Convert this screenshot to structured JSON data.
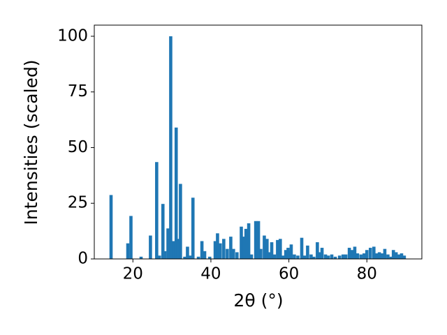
{
  "chart_data": {
    "type": "bar",
    "x_label": "2θ (°)",
    "y_label": "Intensities (scaled)",
    "x": [
      14.4,
      18.7,
      19.5,
      22.1,
      24.5,
      26.1,
      26.8,
      27.7,
      28.2,
      29.0,
      29.7,
      30.4,
      31.1,
      31.5,
      32.2,
      33.3,
      34.0,
      34.7,
      35.4,
      36.8,
      37.7,
      38.4,
      39.7,
      41.1,
      41.7,
      42.4,
      43.3,
      44.2,
      45.1,
      45.8,
      46.7,
      47.8,
      48.5,
      49.0,
      49.7,
      50.4,
      51.5,
      52.2,
      52.8,
      53.7,
      54.4,
      55.1,
      55.6,
      56.3,
      57.1,
      57.8,
      58.5,
      59.2,
      59.8,
      60.1,
      60.6,
      61.4,
      62.3,
      63.3,
      64.0,
      64.8,
      65.7,
      66.4,
      67.3,
      68.0,
      68.5,
      69.4,
      70.1,
      71.0,
      71.9,
      73.0,
      73.9,
      74.6,
      75.5,
      76.2,
      76.9,
      77.6,
      78.5,
      79.3,
      80.0,
      80.9,
      81.8,
      82.5,
      83.2,
      83.9,
      84.6,
      85.4,
      86.2,
      86.8,
      87.5,
      88.2,
      88.9,
      89.6
    ],
    "values": [
      28.7,
      7,
      19.3,
      1,
      10.5,
      43.5,
      1.5,
      24.7,
      3.5,
      13.7,
      100,
      8,
      59,
      9,
      33.7,
      1,
      5.5,
      1.5,
      27.5,
      1,
      8,
      3.5,
      1,
      8,
      11.5,
      7,
      9,
      4.5,
      10,
      4.5,
      3,
      14.5,
      10,
      13.5,
      16,
      2,
      17,
      17,
      4.5,
      10.5,
      9,
      3,
      7.5,
      2,
      8.5,
      9,
      1.5,
      4,
      5,
      3.5,
      6.5,
      2,
      1.5,
      9.5,
      1.5,
      6,
      2,
      1,
      7.5,
      3,
      5,
      2,
      1.5,
      2,
      1,
      1.5,
      2,
      2,
      5,
      4,
      5.5,
      2.5,
      2,
      2.5,
      4,
      5,
      5.5,
      2.5,
      3,
      2.5,
      4.5,
      2,
      1,
      4,
      3,
      2,
      2.5,
      1.5
    ],
    "color": "#1f77b4",
    "xlim": [
      10.1,
      94.1
    ],
    "xticks": [
      20,
      40,
      60,
      80
    ],
    "ylim": [
      0,
      105
    ],
    "yticks": [
      0,
      25,
      50,
      75,
      100
    ],
    "grid": false
  }
}
